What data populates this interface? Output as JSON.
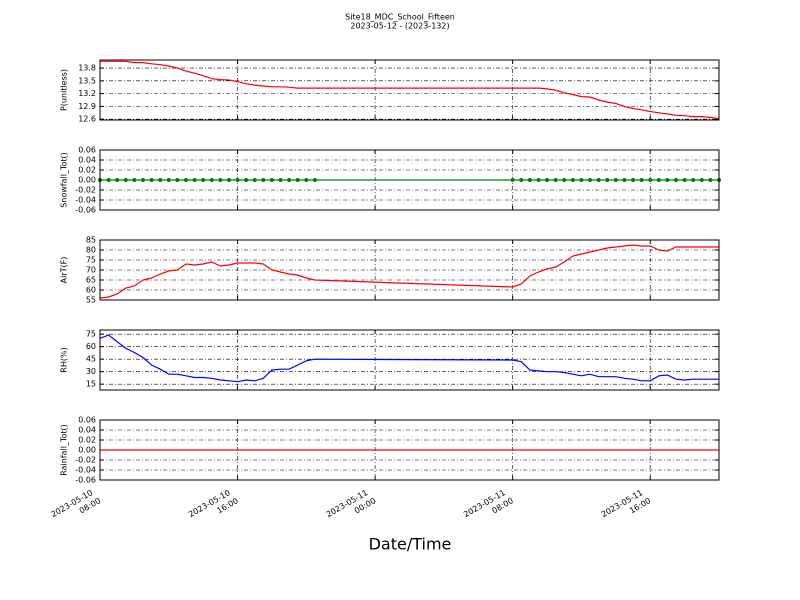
{
  "chart_data": {
    "type": "line",
    "title": "Site18_MDC_School_Fifteen",
    "subtitle": "2023-05-12 - (2023-132)",
    "xlabel": "Date/Time",
    "x": [
      "2023-05-10 08:00",
      "2023-05-10 08:30",
      "2023-05-10 09:00",
      "2023-05-10 09:30",
      "2023-05-10 10:00",
      "2023-05-10 10:30",
      "2023-05-10 11:00",
      "2023-05-10 11:30",
      "2023-05-10 12:00",
      "2023-05-10 12:30",
      "2023-05-10 13:00",
      "2023-05-10 13:30",
      "2023-05-10 14:00",
      "2023-05-10 14:30",
      "2023-05-10 15:00",
      "2023-05-10 15:30",
      "2023-05-10 16:00",
      "2023-05-10 16:30",
      "2023-05-10 17:00",
      "2023-05-10 17:30",
      "2023-05-10 18:00",
      "2023-05-10 18:30",
      "2023-05-10 19:00",
      "2023-05-10 19:30",
      "2023-05-10 20:00",
      "2023-05-10 20:30",
      "2023-05-11 08:00",
      "2023-05-11 08:30",
      "2023-05-11 09:00",
      "2023-05-11 09:30",
      "2023-05-11 10:00",
      "2023-05-11 10:30",
      "2023-05-11 11:00",
      "2023-05-11 11:30",
      "2023-05-11 12:00",
      "2023-05-11 12:30",
      "2023-05-11 13:00",
      "2023-05-11 13:30",
      "2023-05-11 14:00",
      "2023-05-11 14:30",
      "2023-05-11 15:00",
      "2023-05-11 15:30",
      "2023-05-11 16:00",
      "2023-05-11 16:30",
      "2023-05-11 17:00",
      "2023-05-11 17:30",
      "2023-05-11 18:00",
      "2023-05-11 18:30",
      "2023-05-11 19:00",
      "2023-05-11 19:30",
      "2023-05-11 20:00"
    ],
    "xlim": [
      "2023-05-10 08:00",
      "2023-05-11 20:00"
    ],
    "xticks": [
      {
        "value": "2023-05-10 08:00",
        "label": [
          "2023-05-10",
          "08:00"
        ]
      },
      {
        "value": "2023-05-10 16:00",
        "label": [
          "2023-05-10",
          "16:00"
        ]
      },
      {
        "value": "2023-05-11 00:00",
        "label": [
          "2023-05-11",
          "00:00"
        ]
      },
      {
        "value": "2023-05-11 08:00",
        "label": [
          "2023-05-11",
          "08:00"
        ]
      },
      {
        "value": "2023-05-11 16:00",
        "label": [
          "2023-05-11",
          "16:00"
        ]
      }
    ],
    "grid": true,
    "panels": [
      {
        "ylabel": "P(unitless)",
        "ylim": [
          12.58,
          13.99
        ],
        "yticks": [
          {
            "value": 12.6,
            "label": "12.6"
          },
          12.9,
          13.2,
          13.5,
          13.8
        ],
        "series": [
          {
            "color": "#ff0000",
            "marker": false,
            "values": [
              13.96,
              13.96,
              13.96,
              13.96,
              13.93,
              13.93,
              13.9,
              13.88,
              13.85,
              13.8,
              13.73,
              13.68,
              13.62,
              13.55,
              13.53,
              13.52,
              13.48,
              13.43,
              13.4,
              13.38,
              13.36,
              13.36,
              13.35,
              13.33,
              13.33,
              13.33,
              13.33,
              13.33,
              13.33,
              13.33,
              13.31,
              13.28,
              13.22,
              13.18,
              13.13,
              13.12,
              13.05,
              13.0,
              12.97,
              12.9,
              12.85,
              12.82,
              12.78,
              12.75,
              12.72,
              12.69,
              12.68,
              12.66,
              12.66,
              12.64,
              12.61
            ]
          }
        ]
      },
      {
        "ylabel": "Snowfall_Tot()",
        "ylim": [
          -0.06,
          0.06
        ],
        "yticks": [
          -0.06,
          -0.04,
          -0.02,
          {
            "value": 0,
            "label": "0.00"
          },
          0.02,
          0.04,
          0.06
        ],
        "series": [
          {
            "color": "#008000",
            "marker": true,
            "values": [
              0,
              0,
              0,
              0,
              0,
              0,
              0,
              0,
              0,
              0,
              0,
              0,
              0,
              0,
              0,
              0,
              0,
              0,
              0,
              0,
              0,
              0,
              0,
              0,
              0,
              0,
              0,
              0,
              0,
              0,
              0,
              0,
              0,
              0,
              0,
              0,
              0,
              0,
              0,
              0,
              0,
              0,
              0,
              0,
              0,
              0,
              0,
              0,
              0,
              0,
              0
            ]
          }
        ]
      },
      {
        "ylabel": "AirT(F)",
        "ylim": [
          55,
          85
        ],
        "yticks": [
          55,
          60,
          65,
          70,
          75,
          80,
          85
        ],
        "series": [
          {
            "color": "#ff0000",
            "marker": false,
            "values": [
              56,
              56.5,
              58,
              61,
              62,
              65,
              66,
              68,
              69.5,
              70,
              73,
              72.5,
              73,
              74,
              72,
              72.5,
              73.5,
              73.5,
              73.5,
              73,
              70,
              69,
              68,
              67.5,
              66,
              65,
              61.5,
              63,
              67,
              69,
              70.5,
              71.5,
              74,
              77,
              78,
              79,
              80,
              81,
              81.5,
              82,
              82.5,
              82,
              82,
              80,
              79.5,
              81.5,
              81.5,
              81.5,
              81.5,
              81.5,
              81.5
            ]
          }
        ]
      },
      {
        "ylabel": "RH(%)",
        "ylim": [
          8,
          80
        ],
        "yticks": [
          15,
          30,
          45,
          60,
          75
        ],
        "series": [
          {
            "color": "#0000ff",
            "marker": false,
            "values": [
              70,
              74,
              66,
              58,
              53,
              47,
              38,
              33,
              27,
              27,
              25,
              23,
              23,
              22,
              20,
              19,
              18,
              20,
              19,
              22,
              32,
              33,
              33,
              38,
              43,
              45,
              44,
              42,
              32,
              31,
              30,
              30,
              29,
              27,
              25,
              27,
              24,
              24,
              24,
              22,
              21,
              19,
              19,
              25,
              26,
              21,
              20,
              21,
              21,
              21,
              21
            ]
          }
        ]
      },
      {
        "ylabel": "Rainfall_Tot()",
        "ylim": [
          -0.06,
          0.06
        ],
        "yticks": [
          -0.06,
          -0.04,
          -0.02,
          {
            "value": 0,
            "label": "0.00"
          },
          0.02,
          0.04,
          0.06
        ],
        "series": [
          {
            "color": "#ff0000",
            "marker": false,
            "values": [
              0,
              0,
              0,
              0,
              0,
              0,
              0,
              0,
              0,
              0,
              0,
              0,
              0,
              0,
              0,
              0,
              0,
              0,
              0,
              0,
              0,
              0,
              0,
              0,
              0,
              0,
              0,
              0,
              0,
              0,
              0,
              0,
              0,
              0,
              0,
              0,
              0,
              0,
              0,
              0,
              0,
              0,
              0,
              0,
              0,
              0,
              0,
              0,
              0,
              0,
              0
            ]
          }
        ]
      }
    ]
  }
}
